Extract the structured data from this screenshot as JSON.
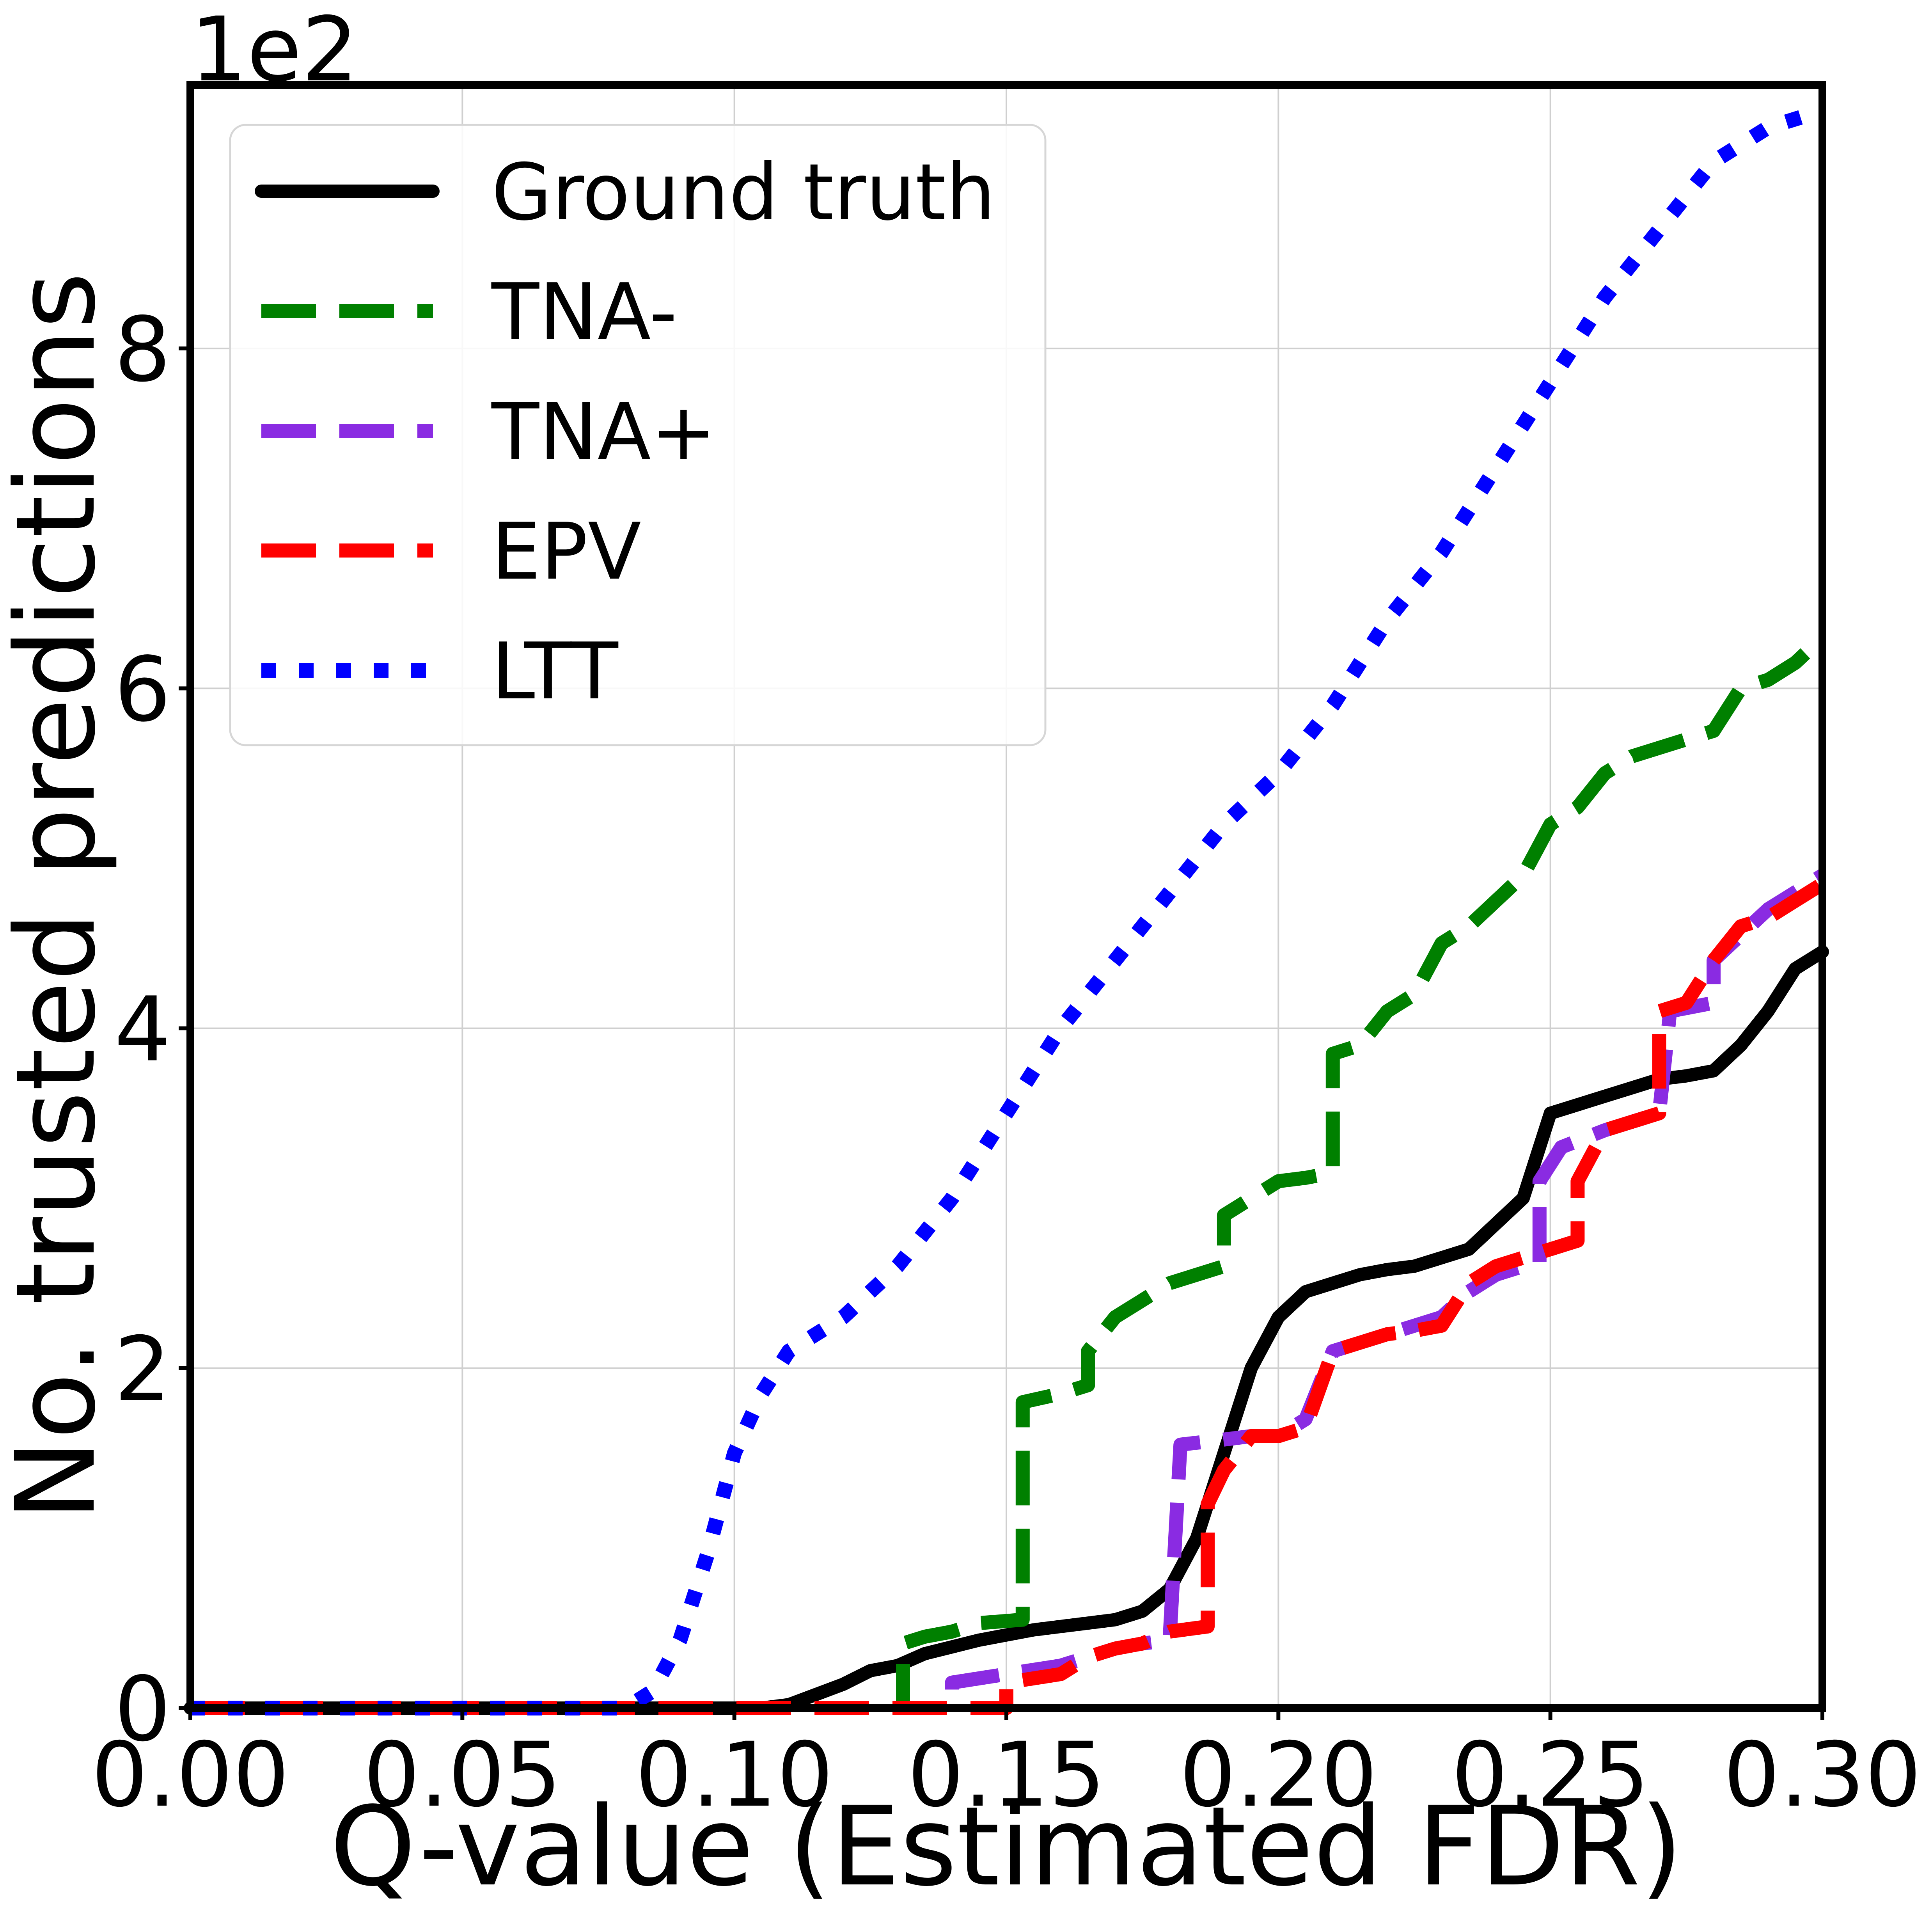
{
  "chart_data": {
    "type": "line",
    "title": "",
    "xlabel": "Q-value (Estimated FDR)",
    "ylabel": "No. trusted predictions",
    "y_multiplier_label": "1e2",
    "xlim": [
      0.0,
      0.3
    ],
    "ylim": [
      0,
      9.55
    ],
    "xticks": [
      0.0,
      0.05,
      0.1,
      0.15,
      0.2,
      0.25,
      0.3
    ],
    "xtick_labels": [
      "0.00",
      "0.05",
      "0.10",
      "0.15",
      "0.20",
      "0.25",
      "0.30"
    ],
    "yticks": [
      0,
      2,
      4,
      6,
      8
    ],
    "ytick_labels": [
      "0",
      "2",
      "4",
      "6",
      "8"
    ],
    "grid": true,
    "legend_position": "top-left",
    "series": [
      {
        "name": "Ground truth",
        "color": "#000000",
        "style": "solid",
        "points": [
          [
            0.0,
            0
          ],
          [
            0.105,
            0
          ],
          [
            0.11,
            0.02
          ],
          [
            0.115,
            0.08
          ],
          [
            0.12,
            0.14
          ],
          [
            0.125,
            0.22
          ],
          [
            0.13,
            0.25
          ],
          [
            0.135,
            0.32
          ],
          [
            0.14,
            0.36
          ],
          [
            0.145,
            0.4
          ],
          [
            0.15,
            0.43
          ],
          [
            0.155,
            0.46
          ],
          [
            0.16,
            0.48
          ],
          [
            0.165,
            0.5
          ],
          [
            0.17,
            0.52
          ],
          [
            0.175,
            0.57
          ],
          [
            0.18,
            0.7
          ],
          [
            0.185,
            1.0
          ],
          [
            0.19,
            1.5
          ],
          [
            0.195,
            2.0
          ],
          [
            0.2,
            2.3
          ],
          [
            0.205,
            2.45
          ],
          [
            0.21,
            2.5
          ],
          [
            0.215,
            2.55
          ],
          [
            0.22,
            2.58
          ],
          [
            0.225,
            2.6
          ],
          [
            0.23,
            2.65
          ],
          [
            0.235,
            2.7
          ],
          [
            0.24,
            2.85
          ],
          [
            0.245,
            3.0
          ],
          [
            0.25,
            3.5
          ],
          [
            0.255,
            3.55
          ],
          [
            0.26,
            3.6
          ],
          [
            0.265,
            3.65
          ],
          [
            0.27,
            3.7
          ],
          [
            0.275,
            3.72
          ],
          [
            0.28,
            3.75
          ],
          [
            0.285,
            3.9
          ],
          [
            0.29,
            4.1
          ],
          [
            0.295,
            4.35
          ],
          [
            0.3,
            4.45
          ]
        ]
      },
      {
        "name": "TNA-",
        "color": "#008000",
        "style": "dashed",
        "points": [
          [
            0.0,
            0
          ],
          [
            0.131,
            0
          ],
          [
            0.131,
            0.38
          ],
          [
            0.135,
            0.42
          ],
          [
            0.14,
            0.45
          ],
          [
            0.145,
            0.5
          ],
          [
            0.153,
            0.52
          ],
          [
            0.153,
            1.8
          ],
          [
            0.16,
            1.85
          ],
          [
            0.165,
            1.9
          ],
          [
            0.165,
            2.1
          ],
          [
            0.17,
            2.3
          ],
          [
            0.175,
            2.4
          ],
          [
            0.18,
            2.5
          ],
          [
            0.185,
            2.55
          ],
          [
            0.19,
            2.6
          ],
          [
            0.19,
            2.9
          ],
          [
            0.195,
            3.0
          ],
          [
            0.2,
            3.1
          ],
          [
            0.205,
            3.12
          ],
          [
            0.21,
            3.15
          ],
          [
            0.21,
            3.85
          ],
          [
            0.215,
            3.9
          ],
          [
            0.22,
            4.1
          ],
          [
            0.225,
            4.2
          ],
          [
            0.23,
            4.5
          ],
          [
            0.235,
            4.6
          ],
          [
            0.24,
            4.75
          ],
          [
            0.245,
            4.9
          ],
          [
            0.25,
            5.2
          ],
          [
            0.255,
            5.3
          ],
          [
            0.26,
            5.5
          ],
          [
            0.265,
            5.6
          ],
          [
            0.27,
            5.65
          ],
          [
            0.275,
            5.7
          ],
          [
            0.28,
            5.75
          ],
          [
            0.285,
            6.0
          ],
          [
            0.29,
            6.05
          ],
          [
            0.295,
            6.15
          ],
          [
            0.3,
            6.3
          ]
        ]
      },
      {
        "name": "TNA+",
        "color": "#8A2BE2",
        "style": "dashed",
        "points": [
          [
            0.0,
            0
          ],
          [
            0.14,
            0
          ],
          [
            0.14,
            0.15
          ],
          [
            0.15,
            0.2
          ],
          [
            0.16,
            0.25
          ],
          [
            0.165,
            0.3
          ],
          [
            0.17,
            0.35
          ],
          [
            0.175,
            0.38
          ],
          [
            0.18,
            0.4
          ],
          [
            0.182,
            1.55
          ],
          [
            0.19,
            1.58
          ],
          [
            0.195,
            1.6
          ],
          [
            0.2,
            1.6
          ],
          [
            0.205,
            1.7
          ],
          [
            0.21,
            2.1
          ],
          [
            0.215,
            2.15
          ],
          [
            0.22,
            2.2
          ],
          [
            0.225,
            2.25
          ],
          [
            0.23,
            2.3
          ],
          [
            0.235,
            2.45
          ],
          [
            0.24,
            2.55
          ],
          [
            0.245,
            2.6
          ],
          [
            0.248,
            2.62
          ],
          [
            0.248,
            3.1
          ],
          [
            0.252,
            3.3
          ],
          [
            0.26,
            3.4
          ],
          [
            0.265,
            3.45
          ],
          [
            0.27,
            3.5
          ],
          [
            0.272,
            4.1
          ],
          [
            0.28,
            4.15
          ],
          [
            0.28,
            4.4
          ],
          [
            0.285,
            4.55
          ],
          [
            0.29,
            4.7
          ],
          [
            0.295,
            4.8
          ],
          [
            0.3,
            4.9
          ]
        ]
      },
      {
        "name": "EPV",
        "color": "#FF0000",
        "style": "dashed",
        "points": [
          [
            0.0,
            0
          ],
          [
            0.15,
            0
          ],
          [
            0.15,
            0.15
          ],
          [
            0.16,
            0.2
          ],
          [
            0.165,
            0.3
          ],
          [
            0.17,
            0.35
          ],
          [
            0.175,
            0.38
          ],
          [
            0.18,
            0.45
          ],
          [
            0.187,
            0.48
          ],
          [
            0.187,
            1.2
          ],
          [
            0.19,
            1.4
          ],
          [
            0.195,
            1.6
          ],
          [
            0.2,
            1.6
          ],
          [
            0.205,
            1.65
          ],
          [
            0.21,
            2.1
          ],
          [
            0.215,
            2.15
          ],
          [
            0.22,
            2.2
          ],
          [
            0.225,
            2.22
          ],
          [
            0.23,
            2.25
          ],
          [
            0.235,
            2.5
          ],
          [
            0.24,
            2.6
          ],
          [
            0.245,
            2.65
          ],
          [
            0.25,
            2.7
          ],
          [
            0.255,
            2.75
          ],
          [
            0.255,
            3.1
          ],
          [
            0.26,
            3.4
          ],
          [
            0.265,
            3.45
          ],
          [
            0.27,
            3.5
          ],
          [
            0.27,
            4.1
          ],
          [
            0.275,
            4.15
          ],
          [
            0.28,
            4.4
          ],
          [
            0.285,
            4.6
          ],
          [
            0.29,
            4.65
          ],
          [
            0.295,
            4.75
          ],
          [
            0.3,
            4.85
          ]
        ]
      },
      {
        "name": "LTT",
        "color": "#0000FF",
        "style": "dotted",
        "points": [
          [
            0.0,
            0
          ],
          [
            0.08,
            0
          ],
          [
            0.085,
            0.1
          ],
          [
            0.09,
            0.4
          ],
          [
            0.095,
            0.9
          ],
          [
            0.1,
            1.5
          ],
          [
            0.105,
            1.85
          ],
          [
            0.11,
            2.1
          ],
          [
            0.12,
            2.3
          ],
          [
            0.13,
            2.6
          ],
          [
            0.14,
            3.0
          ],
          [
            0.15,
            3.5
          ],
          [
            0.16,
            4.0
          ],
          [
            0.17,
            4.4
          ],
          [
            0.18,
            4.8
          ],
          [
            0.19,
            5.2
          ],
          [
            0.2,
            5.5
          ],
          [
            0.21,
            5.9
          ],
          [
            0.22,
            6.4
          ],
          [
            0.23,
            6.8
          ],
          [
            0.24,
            7.3
          ],
          [
            0.25,
            7.8
          ],
          [
            0.26,
            8.3
          ],
          [
            0.27,
            8.7
          ],
          [
            0.28,
            9.1
          ],
          [
            0.29,
            9.3
          ],
          [
            0.3,
            9.4
          ]
        ]
      }
    ]
  }
}
